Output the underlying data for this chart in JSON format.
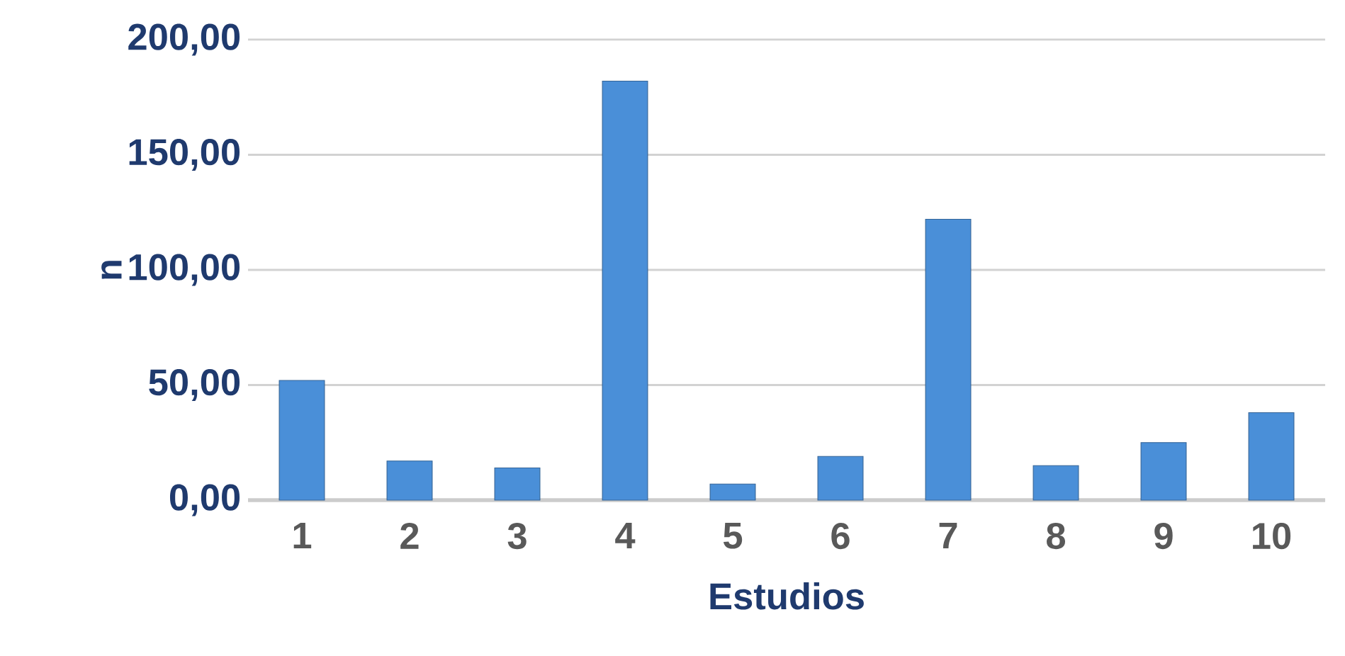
{
  "chart_data": {
    "type": "bar",
    "xlabel": "Estudios",
    "ylabel": "n",
    "categories": [
      "1",
      "2",
      "3",
      "4",
      "5",
      "6",
      "7",
      "8",
      "9",
      "10"
    ],
    "values": [
      52,
      17,
      14,
      182,
      7,
      19,
      122,
      15,
      25,
      38
    ],
    "color": "#4a8fd8",
    "ylim": [
      0,
      200
    ],
    "yticks": [
      {
        "value": 0,
        "label": "0,00"
      },
      {
        "value": 50,
        "label": "50,00"
      },
      {
        "value": 100,
        "label": "100,00"
      },
      {
        "value": 150,
        "label": "150,00"
      },
      {
        "value": 200,
        "label": "200,00"
      }
    ],
    "grid": "y"
  }
}
